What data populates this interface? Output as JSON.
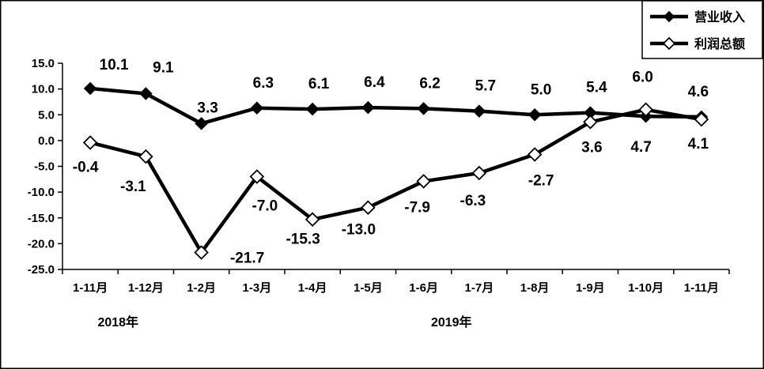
{
  "chart_data": {
    "type": "line",
    "categories": [
      "1-11月",
      "1-12月",
      "1-2月",
      "1-3月",
      "1-4月",
      "1-5月",
      "1-6月",
      "1-7月",
      "1-8月",
      "1-9月",
      "1-10月",
      "1-11月"
    ],
    "category_groups": [
      {
        "label": "2018年",
        "from": 0,
        "to": 1
      },
      {
        "label": "2019年",
        "from": 2,
        "to": 11
      }
    ],
    "series": [
      {
        "name": "营业收入",
        "marker": "filled-diamond",
        "color": "#000000",
        "values": [
          10.1,
          9.1,
          3.3,
          6.3,
          6.1,
          6.4,
          6.2,
          5.7,
          5.0,
          5.4,
          4.7,
          4.6
        ],
        "labels": [
          "10.1",
          "9.1",
          "3.3",
          "6.3",
          "6.1",
          "6.4",
          "6.2",
          "5.7",
          "5.0",
          "5.4",
          "4.7",
          "4.6"
        ]
      },
      {
        "name": "利润总额",
        "marker": "hollow-diamond",
        "color": "#000000",
        "values": [
          -0.4,
          -3.1,
          -21.7,
          -7.0,
          -15.3,
          -13.0,
          -7.9,
          -6.3,
          -2.7,
          3.6,
          6.0,
          4.1
        ],
        "labels": [
          "-0.4",
          "-3.1",
          "-21.7",
          "-7.0",
          "-15.3",
          "-13.0",
          "-7.9",
          "-6.3",
          "-2.7",
          "3.6",
          "6.0",
          "4.1"
        ]
      }
    ],
    "title": "",
    "xlabel": "",
    "ylabel": "",
    "ylim": [
      -25,
      15
    ],
    "yticks": [
      "15.0",
      "10.0",
      "5.0",
      "0.0",
      "-5.0",
      "-10.0",
      "-15.0",
      "-20.0",
      "-25.0"
    ],
    "grid": false,
    "legend_position": "top-right"
  }
}
